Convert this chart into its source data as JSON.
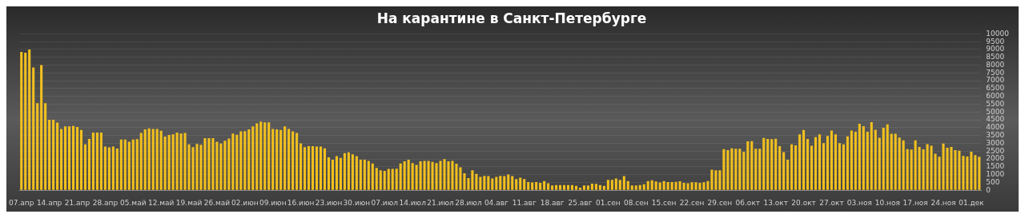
{
  "chart_data": {
    "type": "bar",
    "title": "На карантине в Санкт-Петербурге",
    "categories": [
      "07.апр",
      null,
      null,
      null,
      null,
      null,
      null,
      "14.апр",
      null,
      null,
      null,
      null,
      null,
      null,
      "21.апр",
      null,
      null,
      null,
      null,
      null,
      null,
      "28.апр",
      null,
      null,
      null,
      null,
      null,
      null,
      "05.май",
      null,
      null,
      null,
      null,
      null,
      null,
      "12.май",
      null,
      null,
      null,
      null,
      null,
      null,
      "19.май",
      null,
      null,
      null,
      null,
      null,
      null,
      "26.май",
      null,
      null,
      null,
      null,
      null,
      null,
      "02.июн",
      null,
      null,
      null,
      null,
      null,
      null,
      "09.июн",
      null,
      null,
      null,
      null,
      null,
      null,
      "16.июн",
      null,
      null,
      null,
      null,
      null,
      null,
      "23.июн",
      null,
      null,
      null,
      null,
      null,
      null,
      "30.июн",
      null,
      null,
      null,
      null,
      null,
      null,
      "07.июл",
      null,
      null,
      null,
      null,
      null,
      null,
      "14.июл",
      null,
      null,
      null,
      null,
      null,
      null,
      "21.июл",
      null,
      null,
      null,
      null,
      null,
      null,
      "28.июл",
      null,
      null,
      null,
      null,
      null,
      null,
      "04.авг",
      null,
      null,
      null,
      null,
      null,
      null,
      "11.авг",
      null,
      null,
      null,
      null,
      null,
      null,
      "18.авг",
      null,
      null,
      null,
      null,
      null,
      null,
      "25.авг",
      null,
      null,
      null,
      null,
      null,
      null,
      "01.сен",
      null,
      null,
      null,
      null,
      null,
      null,
      "08.сен",
      null,
      null,
      null,
      null,
      null,
      null,
      "15.сен",
      null,
      null,
      null,
      null,
      null,
      null,
      "22.сен",
      null,
      null,
      null,
      null,
      null,
      null,
      "29.сен",
      null,
      null,
      null,
      null,
      null,
      null,
      "06.окт",
      null,
      null,
      null,
      null,
      null,
      null,
      "13.окт",
      null,
      null,
      null,
      null,
      null,
      null,
      "20.окт",
      null,
      null,
      null,
      null,
      null,
      null,
      "27.окт",
      null,
      null,
      null,
      null,
      null,
      null,
      "03.ноя",
      null,
      null,
      null,
      null,
      null,
      null,
      "10.ноя",
      null,
      null,
      null,
      null,
      null,
      null,
      "17.ноя",
      null,
      null,
      null,
      null,
      null,
      null,
      "24.ноя",
      null,
      null,
      null,
      null,
      null,
      null,
      "01.дек",
      null,
      null
    ],
    "values": [
      8850,
      8800,
      9000,
      7850,
      5560,
      8000,
      5560,
      4500,
      4500,
      4320,
      3920,
      4080,
      4080,
      4110,
      4040,
      3850,
      2940,
      3280,
      3690,
      3690,
      3690,
      2790,
      2740,
      2790,
      2670,
      3240,
      3240,
      3100,
      3240,
      3260,
      3660,
      3890,
      3950,
      3920,
      3920,
      3800,
      3430,
      3540,
      3570,
      3690,
      3620,
      3660,
      2940,
      2750,
      2960,
      2910,
      3330,
      3330,
      3330,
      3100,
      2980,
      3170,
      3310,
      3620,
      3550,
      3760,
      3780,
      3890,
      4080,
      4270,
      4390,
      4340,
      4340,
      3920,
      3890,
      3850,
      4080,
      3920,
      3760,
      3660,
      3000,
      2750,
      2820,
      2820,
      2790,
      2790,
      2680,
      2110,
      1950,
      2180,
      2060,
      2370,
      2420,
      2300,
      2180,
      1950,
      1950,
      1880,
      1710,
      1430,
      1270,
      1240,
      1360,
      1360,
      1380,
      1710,
      1850,
      1950,
      1740,
      1620,
      1850,
      1880,
      1880,
      1810,
      1740,
      1880,
      1990,
      1850,
      1880,
      1690,
      1460,
      1080,
      780,
      1270,
      1050,
      850,
      920,
      910,
      750,
      850,
      920,
      910,
      1010,
      910,
      710,
      800,
      710,
      520,
      490,
      520,
      470,
      590,
      440,
      310,
      330,
      330,
      330,
      330,
      330,
      280,
      160,
      300,
      300,
      420,
      400,
      330,
      280,
      660,
      660,
      750,
      660,
      910,
      590,
      300,
      300,
      330,
      380,
      590,
      640,
      560,
      490,
      590,
      520,
      520,
      540,
      570,
      470,
      440,
      510,
      510,
      470,
      510,
      590,
      1310,
      1270,
      1270,
      2630,
      2560,
      2680,
      2650,
      2650,
      2460,
      3120,
      3140,
      2650,
      2650,
      3340,
      3280,
      3260,
      3290,
      2820,
      2440,
      1950,
      2930,
      2870,
      3570,
      3850,
      3280,
      2840,
      3400,
      3570,
      3010,
      3470,
      3820,
      3570,
      3010,
      2940,
      3450,
      3820,
      3740,
      4250,
      4090,
      3740,
      4350,
      3860,
      3350,
      4000,
      4210,
      3610,
      3610,
      3370,
      3190,
      2630,
      2600,
      3190,
      2770,
      2610,
      2950,
      2840,
      2330,
      2140,
      2980,
      2720,
      2770,
      2560,
      2530,
      2190,
      2160,
      2460,
      2250,
      2140
    ],
    "color": "#f2c01e",
    "ylim": [
      0,
      10000
    ],
    "yticks": [
      0,
      500,
      1000,
      1500,
      2000,
      2500,
      3000,
      3500,
      4000,
      4500,
      5000,
      5500,
      6000,
      6500,
      7000,
      7500,
      8000,
      8500,
      9000,
      9500,
      10000
    ],
    "grid": "y"
  }
}
